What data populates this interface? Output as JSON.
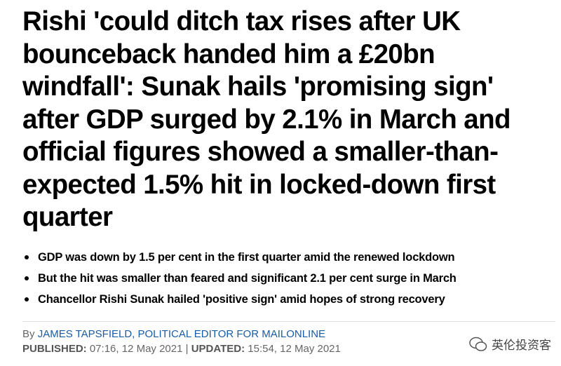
{
  "headline": "Rishi 'could ditch tax rises after UK bounceback handed him a £20bn windfall': Sunak hails 'promising sign' after GDP surged by 2.1% in March and official figures showed a smaller-than-expected 1.5% hit in locked-down first quarter",
  "bullets": [
    "GDP was down by 1.5 per cent in the first quarter amid the renewed lockdown",
    "But the hit was smaller than feared and significant 2.1 per cent surge in March",
    "Chancellor Rishi Sunak hailed 'positive sign' amid hopes of strong recovery"
  ],
  "byline": {
    "prefix": "By",
    "author": "JAMES TAPSFIELD, POLITICAL EDITOR FOR MAILONLINE"
  },
  "dates": {
    "published_label": "PUBLISHED:",
    "published": "07:16, 12 May 2021",
    "separator": "|",
    "updated_label": "UPDATED:",
    "updated": "15:54, 12 May 2021"
  },
  "watermark": "英伦投资客"
}
